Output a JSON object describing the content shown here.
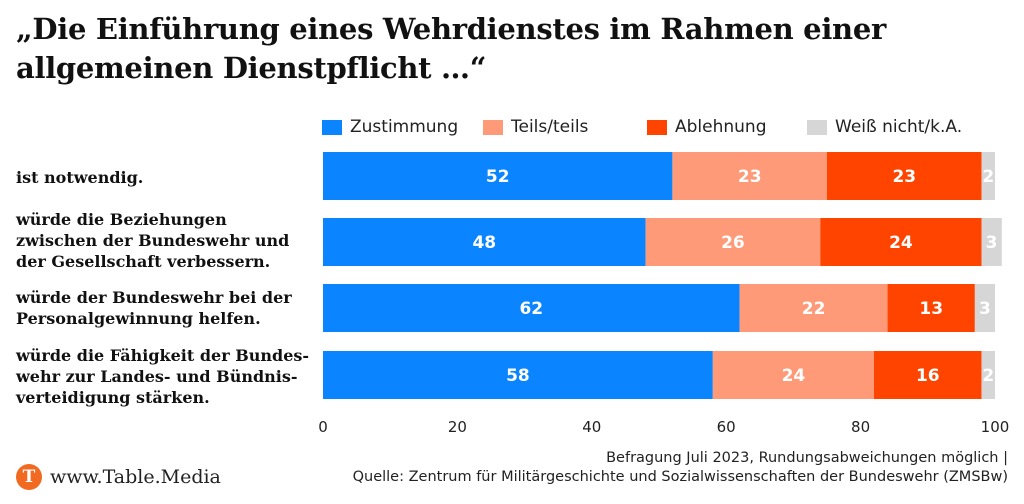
{
  "title_line1": "„Die Einführung eines Wehrdienstes im Rahmen einer",
  "title_line2": "allgemeinen Dienstpflicht …“",
  "chart_data": {
    "type": "bar",
    "orientation": "horizontal",
    "stacked": true,
    "categories": [
      [
        "ist notwendig."
      ],
      [
        "würde die Beziehungen",
        "zwischen der Bundeswehr und",
        "der Gesellschaft verbessern."
      ],
      [
        "würde der Bundeswehr bei der",
        "Personalgewinnung helfen."
      ],
      [
        "würde die Fähigkeit der Bundes-",
        "wehr zur Landes- und Bündnis-",
        "verteidigung stärken."
      ]
    ],
    "series": [
      {
        "name": "Zustimmung",
        "color": "#0a84ff",
        "values": [
          52,
          48,
          62,
          58
        ]
      },
      {
        "name": "Teils/teils",
        "color": "#ff9a78",
        "values": [
          23,
          26,
          22,
          24
        ]
      },
      {
        "name": "Ablehnung",
        "color": "#ff4400",
        "values": [
          23,
          24,
          13,
          16
        ]
      },
      {
        "name": "Weiß nicht/k.A.",
        "color": "#d6d6d6",
        "values": [
          2,
          3,
          3,
          2
        ]
      }
    ],
    "xlim": [
      0,
      100
    ],
    "xticks": [
      0,
      20,
      40,
      60,
      80,
      100
    ],
    "legend": "top",
    "grid": false
  },
  "footer": {
    "logo_letter": "T",
    "logo_text": "www.Table.Media",
    "source_line1": "Befragung Juli 2023, Rundungsabweichungen möglich |",
    "source_line2": "Quelle: Zentrum für Militärgeschichte und Sozialwissenschaften der Bundeswehr (ZMSBw)"
  }
}
